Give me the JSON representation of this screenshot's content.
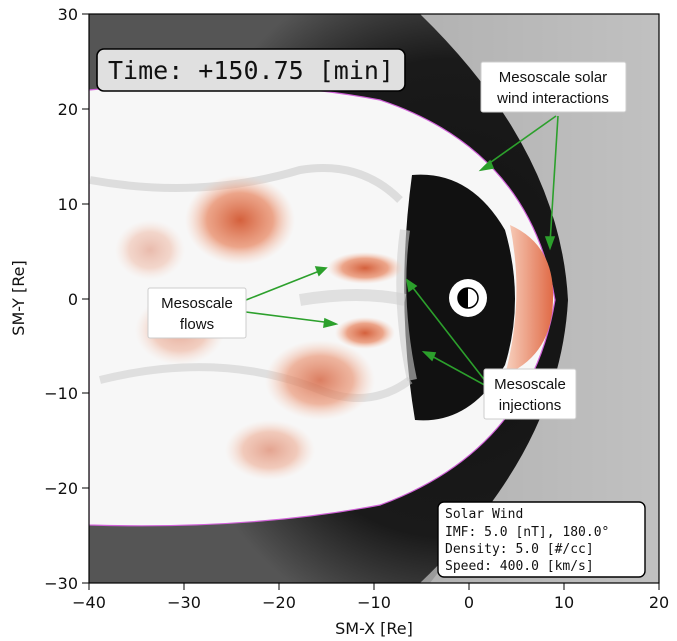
{
  "time_label": "Time: +150.75 [min]",
  "axes": {
    "xlabel": "SM-X [Re]",
    "ylabel": "SM-Y [Re]",
    "xlim": [
      -40,
      20
    ],
    "ylim": [
      -30,
      30
    ],
    "xticks": [
      "−40",
      "−30",
      "−20",
      "−10",
      "0",
      "10",
      "20"
    ],
    "yticks": [
      "30",
      "20",
      "10",
      "0",
      "−10",
      "−20",
      "−30"
    ]
  },
  "annotations": {
    "solar_wind_interactions": [
      "Mesoscale solar",
      "wind interactions"
    ],
    "flows": [
      "Mesoscale",
      "flows"
    ],
    "injections": [
      "Mesoscale",
      "injections"
    ]
  },
  "solar_wind_box": {
    "title": "Solar Wind",
    "imf": "IMF:  5.0 [nT], 180.0°",
    "density": "Density:   5.0 [#/cc]",
    "speed": "Speed:   400.0 [km/s]"
  },
  "colors": {
    "arrow": "#2ca02c",
    "flow": "#e0704e",
    "contour": "#d060d8"
  }
}
